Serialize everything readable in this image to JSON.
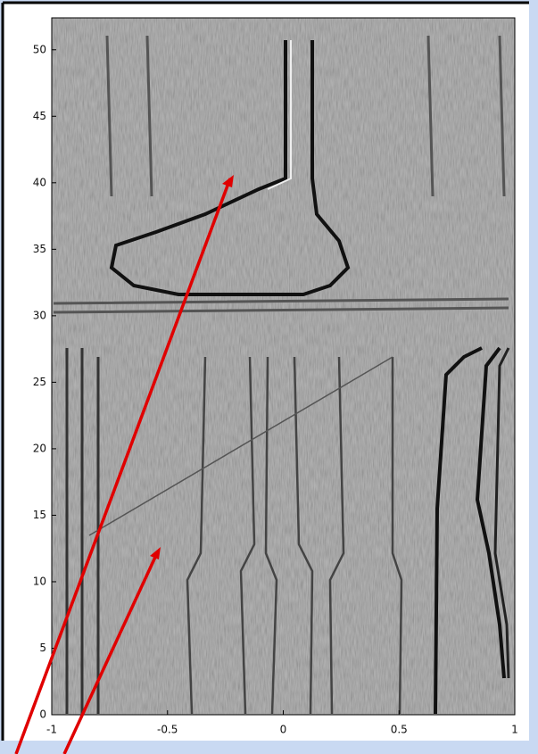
{
  "chart_data": {
    "type": "image",
    "xlim": [
      -1,
      1
    ],
    "xticks": [
      -1,
      -0.5,
      0,
      0.5,
      1
    ],
    "ylim": [
      0,
      52.4
    ],
    "yticks": [
      0,
      5,
      10,
      15,
      20,
      25,
      30,
      35,
      40,
      45,
      50
    ]
  }
}
